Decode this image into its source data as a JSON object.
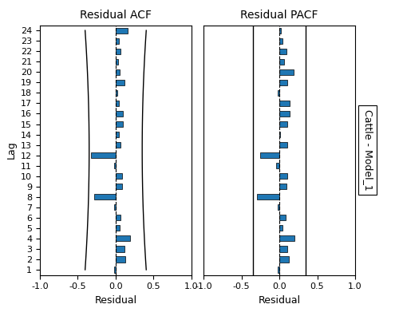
{
  "chart_data": [
    {
      "type": "bar",
      "orientation": "horizontal",
      "title": "Residual ACF",
      "categories": [
        "1",
        "2",
        "3",
        "4",
        "5",
        "6",
        "7",
        "8",
        "9",
        "10",
        "11",
        "12",
        "13",
        "14",
        "15",
        "16",
        "17",
        "18",
        "19",
        "20",
        "21",
        "22",
        "23",
        "24"
      ],
      "values": [
        -0.02,
        0.13,
        0.12,
        0.19,
        0.05,
        0.06,
        -0.02,
        -0.28,
        0.09,
        0.08,
        -0.02,
        -0.33,
        0.06,
        0.04,
        0.1,
        0.1,
        0.04,
        0.02,
        0.12,
        0.05,
        0.03,
        0.06,
        0.04,
        0.16
      ],
      "confidence_upper": [
        0.4033232,
        0.3944528,
        0.3863888,
        0.3791312,
        0.37268,
        0.3670352,
        0.3621968,
        0.3581648,
        0.3549392,
        0.35252,
        0.3509072,
        0.3501008,
        0.3501008,
        0.3509072,
        0.35252,
        0.3549392,
        0.3581648,
        0.3621968,
        0.3670352,
        0.37268,
        0.3791312,
        0.3863888,
        0.3944528,
        0.4033232
      ],
      "confidence_lower": [
        -0.4033232,
        -0.3944528,
        -0.3863888,
        -0.3791312,
        -0.37268,
        -0.3670352,
        -0.3621968,
        -0.3581648,
        -0.3549392,
        -0.35252,
        -0.3509072,
        -0.3501008,
        -0.3501008,
        -0.3509072,
        -0.35252,
        -0.3549392,
        -0.3581648,
        -0.3621968,
        -0.3670352,
        -0.37268,
        -0.3791312,
        -0.3863888,
        -0.3944528,
        -0.4033232
      ],
      "xlim": [
        -1.0,
        1.0
      ],
      "xticks": [
        {
          "value": -1.0,
          "label": "-1.0"
        },
        {
          "value": -0.5,
          "label": "-0.5"
        },
        {
          "value": 0.0,
          "label": "0.0"
        },
        {
          "value": 0.5,
          "label": "0.5"
        },
        {
          "value": 1.0,
          "label": "1.0"
        }
      ],
      "xlabel": "Residual",
      "ylabel": "Lag",
      "grid": false
    },
    {
      "type": "bar",
      "orientation": "horizontal",
      "title": "Residual PACF",
      "categories": [
        "1",
        "2",
        "3",
        "4",
        "5",
        "6",
        "7",
        "8",
        "9",
        "10",
        "11",
        "12",
        "13",
        "14",
        "15",
        "16",
        "17",
        "18",
        "19",
        "20",
        "21",
        "22",
        "23",
        "24"
      ],
      "values": [
        -0.02,
        0.13,
        0.1,
        0.2,
        0.04,
        0.08,
        -0.02,
        -0.3,
        0.09,
        0.1,
        -0.04,
        -0.25,
        0.1,
        0.01,
        0.11,
        0.14,
        0.14,
        -0.02,
        0.11,
        0.19,
        0.06,
        0.09,
        0.04,
        0.02
      ],
      "confidence_bounds": [
        -0.35,
        0.35
      ],
      "xlim": [
        -1.0,
        1.0
      ],
      "xticks": [
        {
          "value": -1.0,
          "label": "-1.0"
        },
        {
          "value": -0.5,
          "label": "-0.5"
        },
        {
          "value": 0.0,
          "label": "0.0"
        },
        {
          "value": 0.5,
          "label": "0.5"
        },
        {
          "value": 1.0,
          "label": "1.0"
        }
      ],
      "xlabel": "Residual",
      "tick_labels": "x",
      "grid": false,
      "annotation": "Cattle - Model_1"
    }
  ]
}
